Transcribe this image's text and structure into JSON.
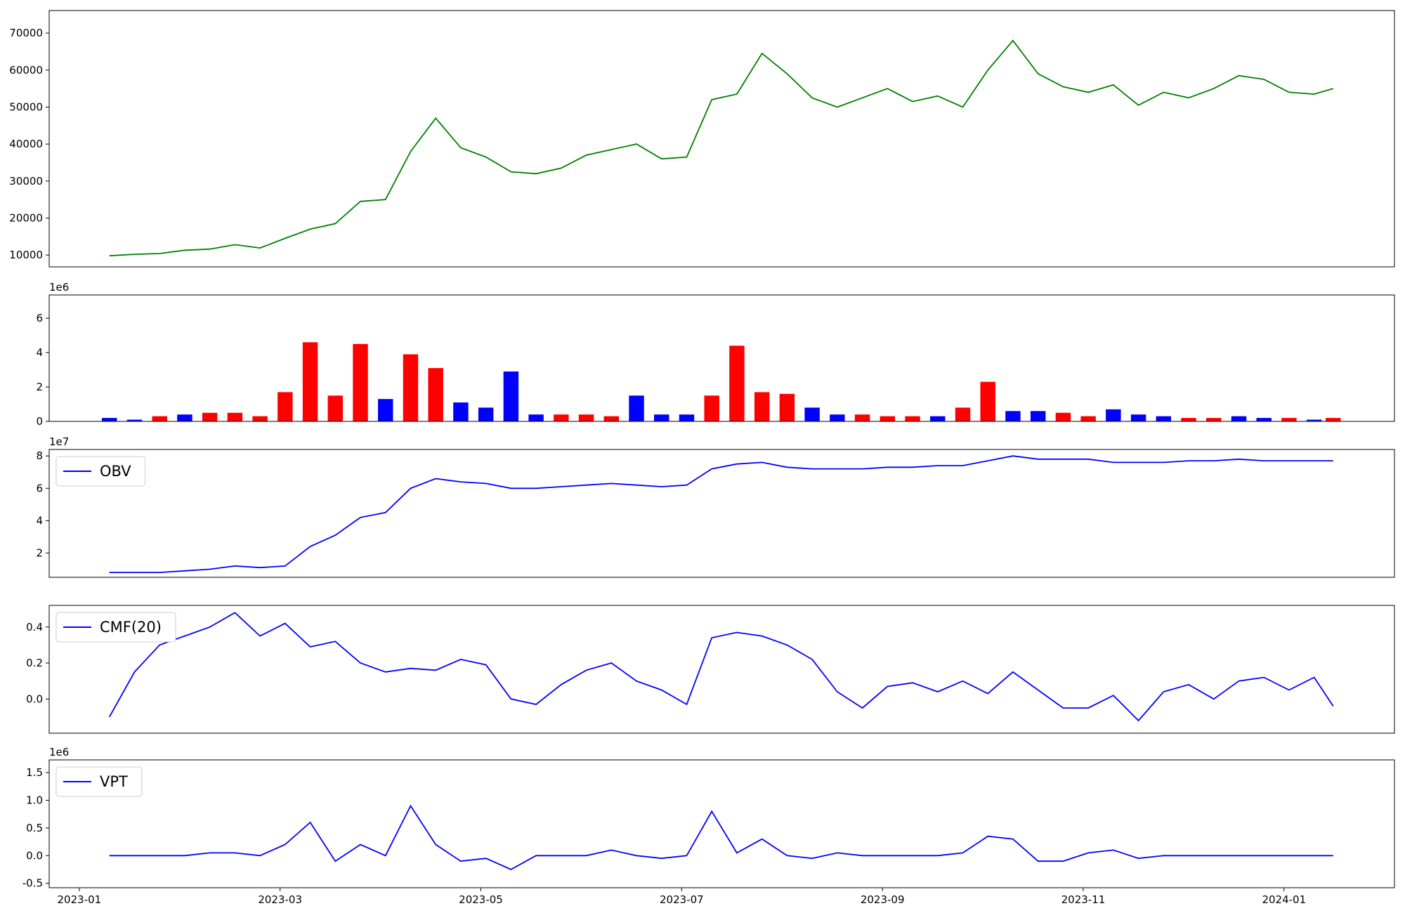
{
  "chart_data": [
    {
      "type": "line",
      "x": [
        0.3,
        0.55,
        0.8,
        1.05,
        1.3,
        1.55,
        1.8,
        2.05,
        2.3,
        2.55,
        2.8,
        3.05,
        3.3,
        3.55,
        3.8,
        4.05,
        4.3,
        4.55,
        4.8,
        5.05,
        5.3,
        5.55,
        5.8,
        6.05,
        6.3,
        6.55,
        6.8,
        7.05,
        7.3,
        7.55,
        7.8,
        8.05,
        8.3,
        8.55,
        8.8,
        9.05,
        9.3,
        9.55,
        9.8,
        10.05,
        10.3,
        10.55,
        10.8,
        11.05,
        11.3,
        11.55,
        11.8,
        12.05,
        12.3,
        12.49
      ],
      "values": [
        9800,
        10200,
        10400,
        11300,
        11600,
        12800,
        11900,
        14500,
        17000,
        18500,
        24500,
        25000,
        38000,
        47000,
        39000,
        36500,
        32500,
        32000,
        33500,
        37000,
        38500,
        40000,
        36000,
        36500,
        52000,
        53500,
        64500,
        59000,
        52500,
        50000,
        52500,
        55000,
        51500,
        53000,
        50000,
        60000,
        68000,
        59000,
        55500,
        54000,
        56000,
        50500,
        54000,
        52500,
        55000,
        58500,
        57500,
        54000,
        53500,
        55000
      ],
      "color": "#008000",
      "xlim": [
        -0.3,
        13.1
      ],
      "ylim": [
        6800,
        76100
      ],
      "yticks": [
        10000,
        20000,
        30000,
        40000,
        50000,
        60000,
        70000
      ]
    },
    {
      "type": "bar",
      "x": [
        0.3,
        0.55,
        0.8,
        1.05,
        1.3,
        1.55,
        1.8,
        2.05,
        2.3,
        2.55,
        2.8,
        3.05,
        3.3,
        3.55,
        3.8,
        4.05,
        4.3,
        4.55,
        4.8,
        5.05,
        5.3,
        5.55,
        5.8,
        6.05,
        6.3,
        6.55,
        6.8,
        7.05,
        7.3,
        7.55,
        7.8,
        8.05,
        8.3,
        8.55,
        8.8,
        9.05,
        9.3,
        9.55,
        9.8,
        10.05,
        10.3,
        10.55,
        10.8,
        11.05,
        11.3,
        11.55,
        11.8,
        12.05,
        12.3,
        12.49
      ],
      "values": [
        0.2,
        0.1,
        0.3,
        0.4,
        0.5,
        0.5,
        0.3,
        1.7,
        4.6,
        1.5,
        4.5,
        1.3,
        3.9,
        3.1,
        1.1,
        0.8,
        2.9,
        0.4,
        0.4,
        0.4,
        0.3,
        1.5,
        0.4,
        0.4,
        1.5,
        4.4,
        1.7,
        1.6,
        0.8,
        0.4,
        0.4,
        0.3,
        0.3,
        0.3,
        0.8,
        2.3,
        0.6,
        0.6,
        0.5,
        0.3,
        0.7,
        0.4,
        0.3,
        0.2,
        0.2,
        0.3,
        0.2,
        0.2,
        0.1,
        0.2
      ],
      "colors": [
        "#0000ff",
        "#0000ff",
        "#ff0000",
        "#0000ff",
        "#ff0000",
        "#ff0000",
        "#ff0000",
        "#ff0000",
        "#ff0000",
        "#ff0000",
        "#ff0000",
        "#0000ff",
        "#ff0000",
        "#ff0000",
        "#0000ff",
        "#0000ff",
        "#0000ff",
        "#0000ff",
        "#ff0000",
        "#ff0000",
        "#ff0000",
        "#0000ff",
        "#0000ff",
        "#0000ff",
        "#ff0000",
        "#ff0000",
        "#ff0000",
        "#ff0000",
        "#0000ff",
        "#0000ff",
        "#ff0000",
        "#ff0000",
        "#ff0000",
        "#0000ff",
        "#ff0000",
        "#ff0000",
        "#0000ff",
        "#0000ff",
        "#ff0000",
        "#ff0000",
        "#0000ff",
        "#0000ff",
        "#0000ff",
        "#ff0000",
        "#ff0000",
        "#0000ff",
        "#0000ff",
        "#ff0000",
        "#0000ff",
        "#ff0000"
      ],
      "y_offset_label": "1e6",
      "xlim": [
        -0.3,
        13.1
      ],
      "ylim": [
        0,
        7.35
      ],
      "yticks": [
        0,
        2,
        4,
        6
      ]
    },
    {
      "type": "line",
      "x": [
        0.3,
        0.55,
        0.8,
        1.05,
        1.3,
        1.55,
        1.8,
        2.05,
        2.3,
        2.55,
        2.8,
        3.05,
        3.3,
        3.55,
        3.8,
        4.05,
        4.3,
        4.55,
        4.8,
        5.05,
        5.3,
        5.55,
        5.8,
        6.05,
        6.3,
        6.55,
        6.8,
        7.05,
        7.3,
        7.55,
        7.8,
        8.05,
        8.3,
        8.55,
        8.8,
        9.05,
        9.3,
        9.55,
        9.8,
        10.05,
        10.3,
        10.55,
        10.8,
        11.05,
        11.3,
        11.55,
        11.8,
        12.05,
        12.3,
        12.49
      ],
      "series": [
        {
          "name": "OBV",
          "color": "#0000ff",
          "values": [
            0.8,
            0.8,
            0.8,
            0.9,
            1.0,
            1.2,
            1.1,
            1.2,
            2.4,
            3.1,
            4.2,
            4.5,
            6.0,
            6.6,
            6.4,
            6.3,
            6.0,
            6.0,
            6.1,
            6.2,
            6.3,
            6.2,
            6.1,
            6.2,
            7.2,
            7.5,
            7.6,
            7.3,
            7.2,
            7.2,
            7.2,
            7.3,
            7.3,
            7.4,
            7.4,
            7.7,
            8.0,
            7.8,
            7.8,
            7.8,
            7.6,
            7.6,
            7.6,
            7.7,
            7.7,
            7.8,
            7.7,
            7.7,
            7.7,
            7.7
          ]
        }
      ],
      "y_offset_label": "1e7",
      "legend": "upper left",
      "xlim": [
        -0.3,
        13.1
      ],
      "ylim": [
        0.5,
        8.4
      ],
      "yticks": [
        2,
        4,
        6,
        8
      ]
    },
    {
      "type": "line",
      "x": [
        0.3,
        0.55,
        0.8,
        1.05,
        1.3,
        1.55,
        1.8,
        2.05,
        2.3,
        2.55,
        2.8,
        3.05,
        3.3,
        3.55,
        3.8,
        4.05,
        4.3,
        4.55,
        4.8,
        5.05,
        5.3,
        5.55,
        5.8,
        6.05,
        6.3,
        6.55,
        6.8,
        7.05,
        7.3,
        7.55,
        7.8,
        8.05,
        8.3,
        8.55,
        8.8,
        9.05,
        9.3,
        9.55,
        9.8,
        10.05,
        10.3,
        10.55,
        10.8,
        11.05,
        11.3,
        11.55,
        11.8,
        12.05,
        12.3,
        12.49
      ],
      "series": [
        {
          "name": "CMF(20)",
          "color": "#0000ff",
          "values": [
            -0.1,
            0.15,
            0.3,
            0.35,
            0.4,
            0.48,
            0.35,
            0.42,
            0.29,
            0.32,
            0.2,
            0.15,
            0.17,
            0.16,
            0.22,
            0.19,
            0.0,
            -0.03,
            0.08,
            0.16,
            0.2,
            0.1,
            0.05,
            -0.03,
            0.34,
            0.37,
            0.35,
            0.3,
            0.22,
            0.04,
            -0.05,
            0.07,
            0.09,
            0.04,
            0.1,
            0.03,
            0.15,
            0.05,
            -0.05,
            -0.05,
            0.02,
            -0.12,
            0.04,
            0.08,
            0.0,
            0.1,
            0.12,
            0.05,
            0.12,
            -0.04
          ]
        }
      ],
      "legend": "upper left",
      "xlim": [
        -0.3,
        13.1
      ],
      "ylim": [
        -0.19,
        0.52
      ],
      "yticks": [
        {
          "value": 0,
          "label": "0.0"
        },
        0.2,
        0.4
      ]
    },
    {
      "type": "line",
      "x": [
        0.3,
        0.55,
        0.8,
        1.05,
        1.3,
        1.55,
        1.8,
        2.05,
        2.3,
        2.55,
        2.8,
        3.05,
        3.3,
        3.55,
        3.8,
        4.05,
        4.3,
        4.55,
        4.8,
        5.05,
        5.3,
        5.55,
        5.8,
        6.05,
        6.3,
        6.55,
        6.8,
        7.05,
        7.3,
        7.55,
        7.8,
        8.05,
        8.3,
        8.55,
        8.8,
        9.05,
        9.3,
        9.55,
        9.8,
        10.05,
        10.3,
        10.55,
        10.8,
        11.05,
        11.3,
        11.55,
        11.8,
        12.05,
        12.3,
        12.49
      ],
      "series": [
        {
          "name": "VPT",
          "color": "#0000ff",
          "values": [
            0,
            0,
            0,
            0,
            0.05,
            0.05,
            0,
            0.2,
            0.6,
            -0.1,
            0.2,
            0,
            0.9,
            0.2,
            -0.1,
            -0.05,
            -0.25,
            0,
            0,
            0,
            0.1,
            0,
            -0.05,
            0,
            0.8,
            0.05,
            0.3,
            0,
            -0.05,
            0.05,
            0,
            0,
            0,
            0,
            0.05,
            0.35,
            0.3,
            -0.1,
            -0.1,
            0.05,
            0.1,
            -0.05,
            0,
            0,
            0,
            0,
            0,
            0,
            0,
            0
          ]
        }
      ],
      "y_offset_label": "1e6",
      "legend": "upper left",
      "xlim": [
        -0.3,
        13.1
      ],
      "ylim": [
        -0.58,
        1.73
      ],
      "yticks": [
        -0.5,
        {
          "value": 0,
          "label": "0.0"
        },
        0.5,
        {
          "value": 1,
          "label": "1.0"
        },
        1.5
      ],
      "xticks": [
        {
          "value": 0,
          "label": "2023-01"
        },
        {
          "value": 2,
          "label": "2023-03"
        },
        {
          "value": 4,
          "label": "2023-05"
        },
        {
          "value": 6,
          "label": "2023-07"
        },
        {
          "value": 8,
          "label": "2023-09"
        },
        {
          "value": 10,
          "label": "2023-11"
        },
        {
          "value": 12,
          "label": "2024-01"
        }
      ]
    }
  ]
}
